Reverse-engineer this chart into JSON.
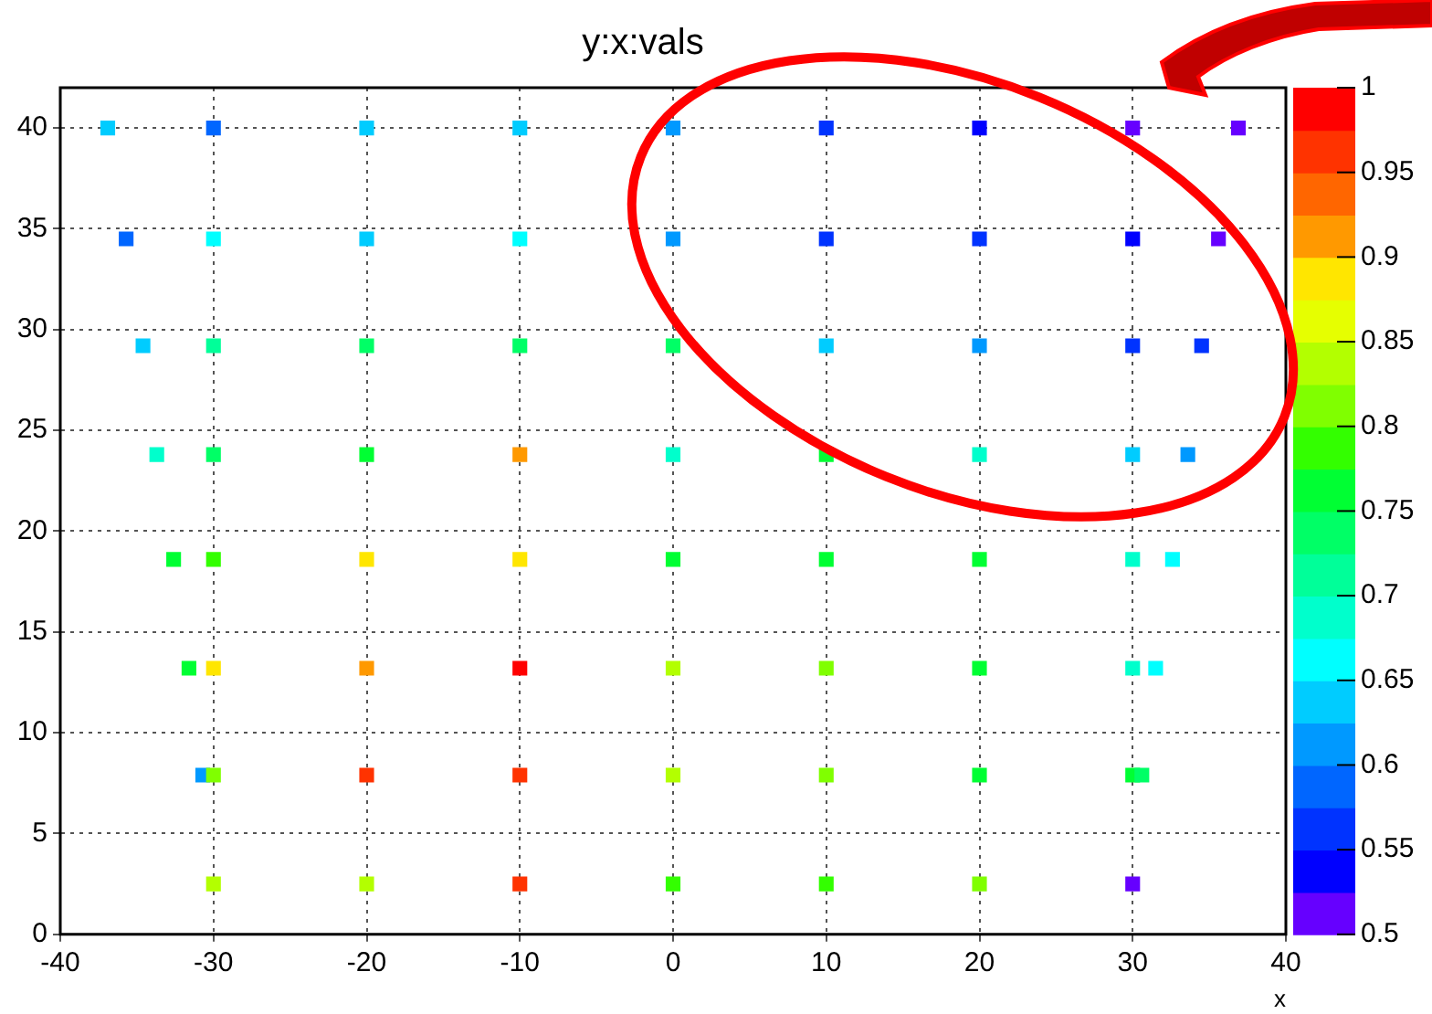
{
  "chart_data": {
    "type": "scatter",
    "title": "y:x:vals",
    "xlabel": "x",
    "xlim": [
      -40,
      40
    ],
    "xticks": [
      -40,
      -30,
      -20,
      -10,
      0,
      10,
      20,
      30,
      40
    ],
    "ylim": [
      0,
      42
    ],
    "yticks": [
      0,
      5,
      10,
      15,
      20,
      25,
      30,
      35,
      40
    ],
    "clim": [
      0.5,
      1
    ],
    "cticks": [
      0.5,
      0.55,
      0.6,
      0.65,
      0.7,
      0.75,
      0.8,
      0.85,
      0.9,
      0.95,
      1
    ],
    "grid": true,
    "marker": "square",
    "legend": false,
    "series": [
      {
        "x": [
          -36.9,
          -30,
          -20,
          -10,
          0,
          10,
          20,
          30,
          36.9,
          -35.7,
          -30,
          -20,
          -10,
          0,
          10,
          20,
          30,
          35.6,
          -34.6,
          -30,
          -20,
          -10,
          0,
          10,
          20,
          30,
          34.5,
          -33.7,
          -30,
          -20,
          -10,
          0,
          10,
          20,
          30,
          33.6,
          -32.6,
          -30,
          -20,
          -10,
          0,
          10,
          20,
          30,
          32.6,
          -31.6,
          -30,
          -20,
          -10,
          0,
          10,
          20,
          30,
          31.5,
          -30.7,
          -30,
          -20,
          -10,
          0,
          10,
          20,
          30,
          30.6,
          -30,
          -20,
          -10,
          0,
          10,
          20,
          30
        ],
        "values": [
          40,
          40,
          40,
          40,
          40,
          40,
          40,
          40,
          40,
          34.5,
          34.5,
          34.5,
          34.5,
          34.5,
          34.5,
          34.5,
          34.5,
          34.5,
          29.2,
          29.2,
          29.2,
          29.2,
          29.2,
          29.2,
          29.2,
          29.2,
          29.2,
          23.8,
          23.8,
          23.8,
          23.8,
          23.8,
          23.8,
          23.8,
          23.8,
          23.8,
          18.6,
          18.6,
          18.6,
          18.6,
          18.6,
          18.6,
          18.6,
          18.6,
          18.6,
          13.2,
          13.2,
          13.2,
          13.2,
          13.2,
          13.2,
          13.2,
          13.2,
          13.2,
          7.9,
          7.9,
          7.9,
          7.9,
          7.9,
          7.9,
          7.9,
          7.9,
          7.9,
          2.5,
          2.5,
          2.5,
          2.5,
          2.5,
          2.5,
          2.5
        ],
        "cvalues": [
          0.64,
          0.59,
          0.64,
          0.64,
          0.61,
          0.56,
          0.54,
          0.51,
          0.51,
          0.59,
          0.66,
          0.64,
          0.66,
          0.61,
          0.56,
          0.56,
          0.54,
          0.51,
          0.64,
          0.71,
          0.74,
          0.74,
          0.74,
          0.64,
          0.61,
          0.56,
          0.56,
          0.69,
          0.74,
          0.76,
          0.91,
          0.69,
          0.76,
          0.69,
          0.64,
          0.61,
          0.76,
          0.79,
          0.89,
          0.89,
          0.76,
          0.76,
          0.76,
          0.69,
          0.66,
          0.76,
          0.89,
          0.91,
          0.99,
          0.84,
          0.81,
          0.76,
          0.69,
          0.66,
          0.61,
          0.81,
          0.96,
          0.96,
          0.84,
          0.81,
          0.76,
          0.76,
          0.74,
          0.84,
          0.84,
          0.96,
          0.79,
          0.79,
          0.81,
          0.51
        ]
      }
    ]
  }
}
